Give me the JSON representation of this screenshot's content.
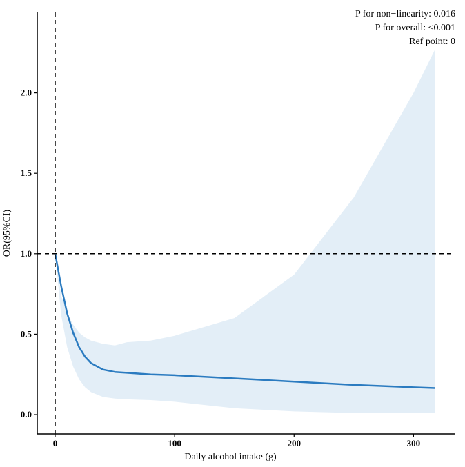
{
  "chart_data": {
    "type": "line",
    "title": "",
    "xlabel": "Daily alcohol intake (g)",
    "ylabel": "OR(95%CI)",
    "xlim": [
      -15,
      335
    ],
    "ylim": [
      -0.12,
      2.5
    ],
    "x_ticks": [
      0,
      100,
      200,
      300
    ],
    "y_ticks": [
      0.0,
      0.5,
      1.0,
      1.5,
      2.0
    ],
    "x_tick_labels": [
      "0",
      "100",
      "200",
      "300"
    ],
    "y_tick_labels": [
      "0.0",
      "0.5",
      "1.0",
      "1.5",
      "2.0"
    ],
    "reference_lines": {
      "vertical_x": 0,
      "horizontal_y": 1.0
    },
    "grid": false,
    "annotations": [
      "P for non−linearity:  0.016",
      "P for overall:  <0.001",
      "Ref point:  0"
    ],
    "series": [
      {
        "x": [
          0,
          5,
          10,
          15,
          20,
          25,
          30,
          40,
          50,
          60,
          80,
          100,
          150,
          200,
          250,
          300,
          318
        ],
        "y": [
          1.0,
          0.8,
          0.63,
          0.51,
          0.42,
          0.36,
          0.32,
          0.28,
          0.265,
          0.26,
          0.25,
          0.245,
          0.225,
          0.205,
          0.185,
          0.17,
          0.165
        ],
        "lower": [
          1.0,
          0.62,
          0.42,
          0.3,
          0.22,
          0.17,
          0.14,
          0.11,
          0.1,
          0.095,
          0.09,
          0.08,
          0.04,
          0.02,
          0.01,
          0.01,
          0.01
        ],
        "upper": [
          1.0,
          0.74,
          0.63,
          0.56,
          0.51,
          0.48,
          0.46,
          0.44,
          0.43,
          0.45,
          0.46,
          0.49,
          0.6,
          0.87,
          1.35,
          2.0,
          2.27
        ]
      }
    ],
    "colors": {
      "line": "#2b7bc0",
      "ci_band": "#e3eef7",
      "ref_line": "#000000",
      "axis": "#000000"
    }
  }
}
